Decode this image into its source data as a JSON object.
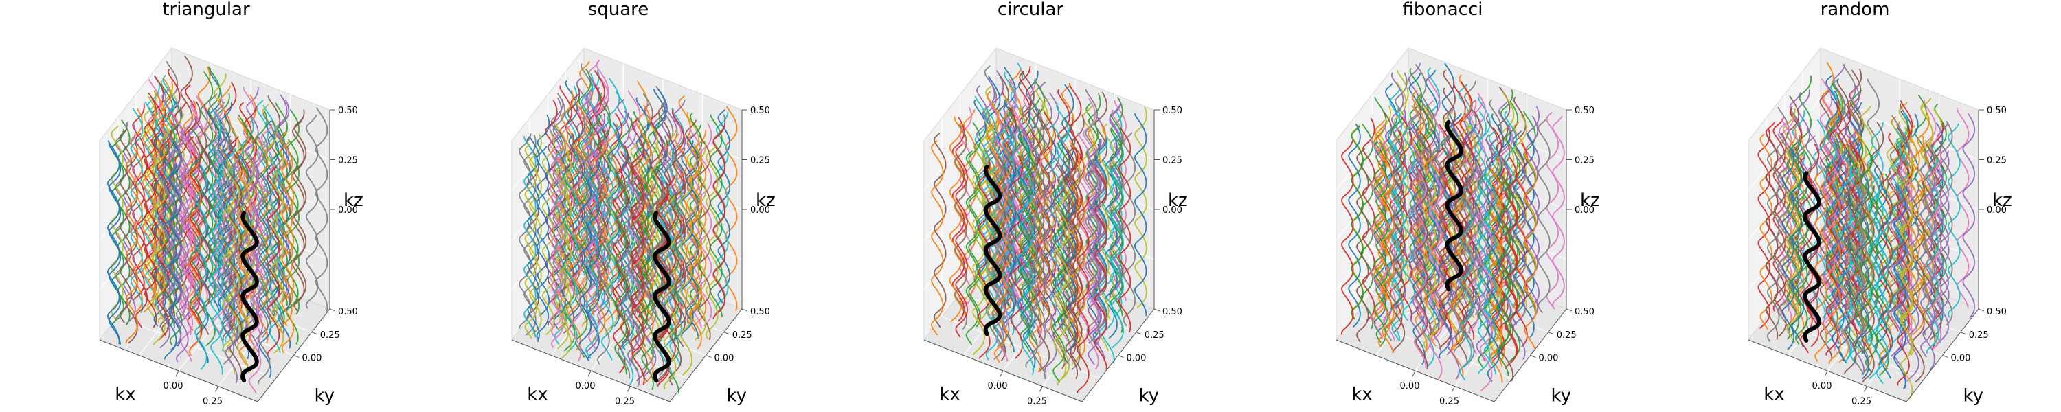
{
  "chart_data": [
    {
      "type": "line3d",
      "title": "triangular",
      "xlabel": "kx",
      "ylabel": "ky",
      "zlabel": "kz",
      "xticks": [
        "0.00",
        "0.25"
      ],
      "yticks": [
        "0.00",
        "0.25",
        "0.50"
      ],
      "zticks": [
        "0.00",
        "0.25",
        "0.50"
      ],
      "xlim": [
        -0.5,
        0.5
      ],
      "ylim": [
        -0.5,
        0.5
      ],
      "zlim": [
        -0.5,
        0.5
      ],
      "grid": true,
      "seed": 11,
      "highlight": {
        "kx": 0.45,
        "ky": -0.5,
        "color": "#000000"
      }
    },
    {
      "type": "line3d",
      "title": "square",
      "xlabel": "kx",
      "ylabel": "ky",
      "zlabel": "kz",
      "xticks": [
        "0.00",
        "0.25"
      ],
      "yticks": [
        "0.00",
        "0.25",
        "0.50"
      ],
      "zticks": [
        "0.00",
        "0.25",
        "0.50"
      ],
      "xlim": [
        -0.5,
        0.5
      ],
      "ylim": [
        -0.5,
        0.5
      ],
      "zlim": [
        -0.5,
        0.5
      ],
      "grid": true,
      "seed": 23,
      "highlight": {
        "kx": 0.45,
        "ky": -0.5,
        "color": "#000000"
      }
    },
    {
      "type": "line3d",
      "title": "circular",
      "xlabel": "kx",
      "ylabel": "ky",
      "zlabel": "kz",
      "xticks": [
        "0.00",
        "0.25"
      ],
      "yticks": [
        "0.00",
        "0.25",
        "0.50"
      ],
      "zticks": [
        "0.00",
        "0.25",
        "0.50"
      ],
      "xlim": [
        -0.5,
        0.5
      ],
      "ylim": [
        -0.5,
        0.5
      ],
      "zlim": [
        -0.5,
        0.5
      ],
      "grid": true,
      "seed": 37,
      "highlight": {
        "kx": -0.12,
        "ky": -0.38,
        "color": "#000000"
      }
    },
    {
      "type": "line3d",
      "title": "fibonacci",
      "xlabel": "kx",
      "ylabel": "ky",
      "zlabel": "kz",
      "xticks": [
        "0.00",
        "0.25"
      ],
      "yticks": [
        "0.00",
        "0.25",
        "0.50"
      ],
      "zticks": [
        "0.00",
        "0.25",
        "0.50"
      ],
      "xlim": [
        -0.5,
        0.5
      ],
      "ylim": [
        -0.5,
        0.5
      ],
      "zlim": [
        -0.5,
        0.5
      ],
      "grid": true,
      "seed": 41,
      "highlight": {
        "kx": -0.05,
        "ky": 0.15,
        "color": "#000000"
      }
    },
    {
      "type": "line3d",
      "title": "random",
      "xlabel": "kx",
      "ylabel": "ky",
      "zlabel": "kz",
      "xticks": [
        "0.00",
        "0.25"
      ],
      "yticks": [
        "0.00",
        "0.25",
        "0.50"
      ],
      "zticks": [
        "0.00",
        "0.25",
        "0.50"
      ],
      "xlim": [
        -0.5,
        0.5
      ],
      "ylim": [
        -0.5,
        0.5
      ],
      "zlim": [
        -0.5,
        0.5
      ],
      "grid": true,
      "seed": 53,
      "highlight": {
        "kx": -0.12,
        "ky": -0.45,
        "color": "#000000"
      }
    }
  ],
  "palette": [
    "#1f77b4",
    "#ff7f0e",
    "#2ca02c",
    "#d62728",
    "#9467bd",
    "#8c564b",
    "#e377c2",
    "#7f7f7f",
    "#bcbd22",
    "#17becf"
  ]
}
